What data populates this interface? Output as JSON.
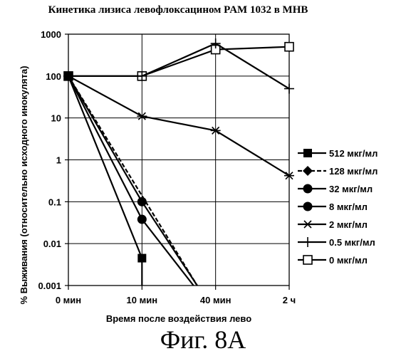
{
  "chart_data": {
    "type": "line",
    "title": "Кинетика лизиса левофлоксацином PAM 1032 в MHB",
    "xlabel": "Время после воздействия лево",
    "ylabel": "% Выживания (относительно исходного инокулята)",
    "categories": [
      "0 мин",
      "10 мин",
      "40 мин",
      "2 ч"
    ],
    "y_scale": "log",
    "ylim": [
      0.001,
      1000
    ],
    "y_ticks": [
      "1000",
      "100",
      "10",
      "1",
      "0.1",
      "0.01",
      "0.001"
    ],
    "grid": true,
    "legend_position": "right",
    "series": [
      {
        "name": "512 мкг/мл",
        "marker": "square-filled",
        "dash": "solid",
        "values": [
          100,
          0.0045,
          null,
          null
        ],
        "tail": [
          1,
          1e-05
        ]
      },
      {
        "name": "128 мкг/мл",
        "marker": "diamond-filled",
        "dash": "dashed",
        "values": [
          100,
          null,
          null,
          null
        ],
        "tail": [
          1.75,
          0.001
        ]
      },
      {
        "name": "32 мкг/мл",
        "marker": "circle-filled",
        "dash": "solid",
        "values": [
          100,
          0.1,
          null,
          null
        ],
        "tail": [
          1.75,
          0.001
        ]
      },
      {
        "name": "8 мкг/мл",
        "marker": "circle-filled",
        "dash": "solid",
        "values": [
          100,
          0.038,
          null,
          null
        ],
        "tail": [
          1.7,
          0.001
        ]
      },
      {
        "name": "2 мкг/мл",
        "marker": "star",
        "dash": "solid",
        "values": [
          100,
          11,
          5,
          0.42
        ]
      },
      {
        "name": "0.5 мкг/мл",
        "marker": "plus",
        "dash": "solid",
        "values": [
          100,
          100,
          600,
          50
        ]
      },
      {
        "name": "0 мкг/мл",
        "marker": "square-open",
        "dash": "solid",
        "values": [
          100,
          100,
          430,
          500
        ]
      }
    ]
  },
  "figure_caption": "Фиг. 8А"
}
